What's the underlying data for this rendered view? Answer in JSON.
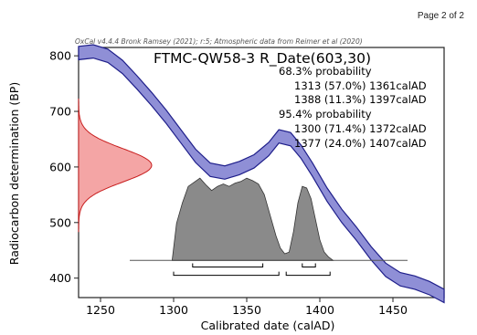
{
  "page_label": "Page 2 of 2",
  "chart_data": {
    "type": "area",
    "software_credit": "OxCal v4.4.4 Bronk Ramsey (2021); r:5; Atmospheric data from Reimer et al (2020)",
    "title": "FTMC-QW58-3 R_Date(603,30)",
    "annotations": [
      "68.3% probability",
      "1313 (57.0%) 1361calAD",
      "1388 (11.3%) 1397calAD",
      "95.4% probability",
      "1300 (71.4%) 1372calAD",
      "1377 (24.0%) 1407calAD"
    ],
    "xlabel": "Calibrated date (calAD)",
    "ylabel": "Radiocarbon determination (BP)",
    "xlim": [
      1235,
      1485
    ],
    "ylim": [
      365,
      815
    ],
    "xticks": [
      1250,
      1300,
      1350,
      1400,
      1450
    ],
    "yticks": [
      400,
      500,
      600,
      700,
      800
    ],
    "calibration_curve": {
      "x": [
        1235,
        1245,
        1255,
        1265,
        1275,
        1285,
        1295,
        1305,
        1315,
        1325,
        1335,
        1345,
        1355,
        1365,
        1372,
        1380,
        1387,
        1395,
        1405,
        1415,
        1425,
        1435,
        1445,
        1455,
        1465,
        1475,
        1485
      ],
      "y": [
        805,
        808,
        800,
        780,
        752,
        722,
        690,
        655,
        620,
        595,
        590,
        598,
        610,
        632,
        655,
        650,
        628,
        595,
        550,
        512,
        480,
        445,
        415,
        398,
        392,
        382,
        368
      ],
      "band_half_width": 12
    },
    "measurement": {
      "mean": 603,
      "sigma": 30
    },
    "posterior": {
      "x": [
        1299,
        1302,
        1306,
        1310,
        1314,
        1318,
        1322,
        1326,
        1330,
        1334,
        1338,
        1342,
        1346,
        1350,
        1354,
        1358,
        1362,
        1366,
        1370,
        1373,
        1376,
        1379,
        1382,
        1385,
        1388,
        1391,
        1394,
        1397,
        1400,
        1403,
        1406,
        1409
      ],
      "density": [
        0.0,
        0.45,
        0.7,
        0.9,
        0.95,
        1.0,
        0.92,
        0.85,
        0.9,
        0.93,
        0.9,
        0.94,
        0.96,
        1.0,
        0.97,
        0.93,
        0.8,
        0.55,
        0.3,
        0.15,
        0.08,
        0.1,
        0.35,
        0.7,
        0.9,
        0.88,
        0.75,
        0.5,
        0.25,
        0.1,
        0.04,
        0.0
      ]
    },
    "ranges_68": [
      [
        1313,
        1361
      ],
      [
        1388,
        1397
      ]
    ],
    "ranges_95": [
      [
        1300,
        1372
      ],
      [
        1377,
        1407
      ]
    ],
    "colors": {
      "curve_fill": "#8f8fd6",
      "curve_edge": "#1e1e8a",
      "measurement_fill": "#f4a5a5",
      "measurement_edge": "#c81e1e",
      "posterior_fill": "#8a8a8a",
      "posterior_edge": "#333333"
    }
  }
}
